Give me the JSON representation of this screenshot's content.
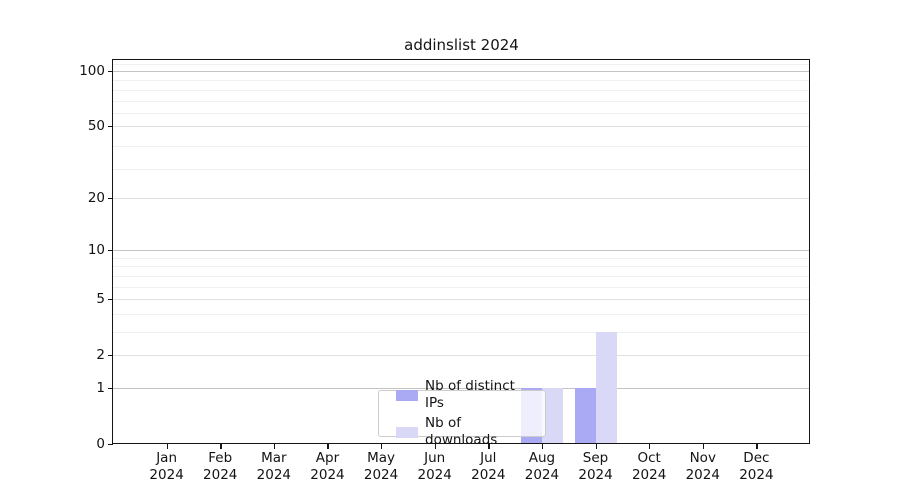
{
  "chart_data": {
    "type": "bar",
    "title": "addinslist 2024",
    "categories": [
      "Jan",
      "Feb",
      "Mar",
      "Apr",
      "May",
      "Jun",
      "Jul",
      "Aug",
      "Sep",
      "Oct",
      "Nov",
      "Dec"
    ],
    "x_year_label": "2024",
    "series": [
      {
        "name": "Nb of distinct IPs",
        "color": "#a9a9f4",
        "values": [
          0,
          0,
          0,
          0,
          0,
          0,
          0,
          1,
          1,
          0,
          0,
          0
        ]
      },
      {
        "name": "Nb of downloads",
        "color": "#d9d9f7",
        "values": [
          0,
          0,
          0,
          0,
          0,
          0,
          0,
          1,
          3,
          0,
          0,
          0
        ]
      }
    ],
    "y_ticks": [
      0,
      1,
      2,
      5,
      10,
      20,
      50,
      100
    ],
    "y_scale": "log10(1+value)",
    "y_axis_max": 116,
    "minor_gridline_values": [
      3,
      4,
      6,
      7,
      8,
      9,
      29,
      39,
      59,
      69,
      79,
      89,
      109
    ],
    "strong_gridline_values": [
      1,
      10,
      100
    ],
    "grid": "horizontal-only",
    "legend_position": "inside-bottom-center",
    "colors": {
      "axis": "#161616",
      "text": "#141414",
      "grid_major": "#e0e0e0",
      "grid_strong": "#c3c3c3",
      "grid_minor": "#f0f0f0",
      "legend_border": "#cccccc",
      "legend_background": "rgba(255,255,255,0.8)"
    }
  }
}
